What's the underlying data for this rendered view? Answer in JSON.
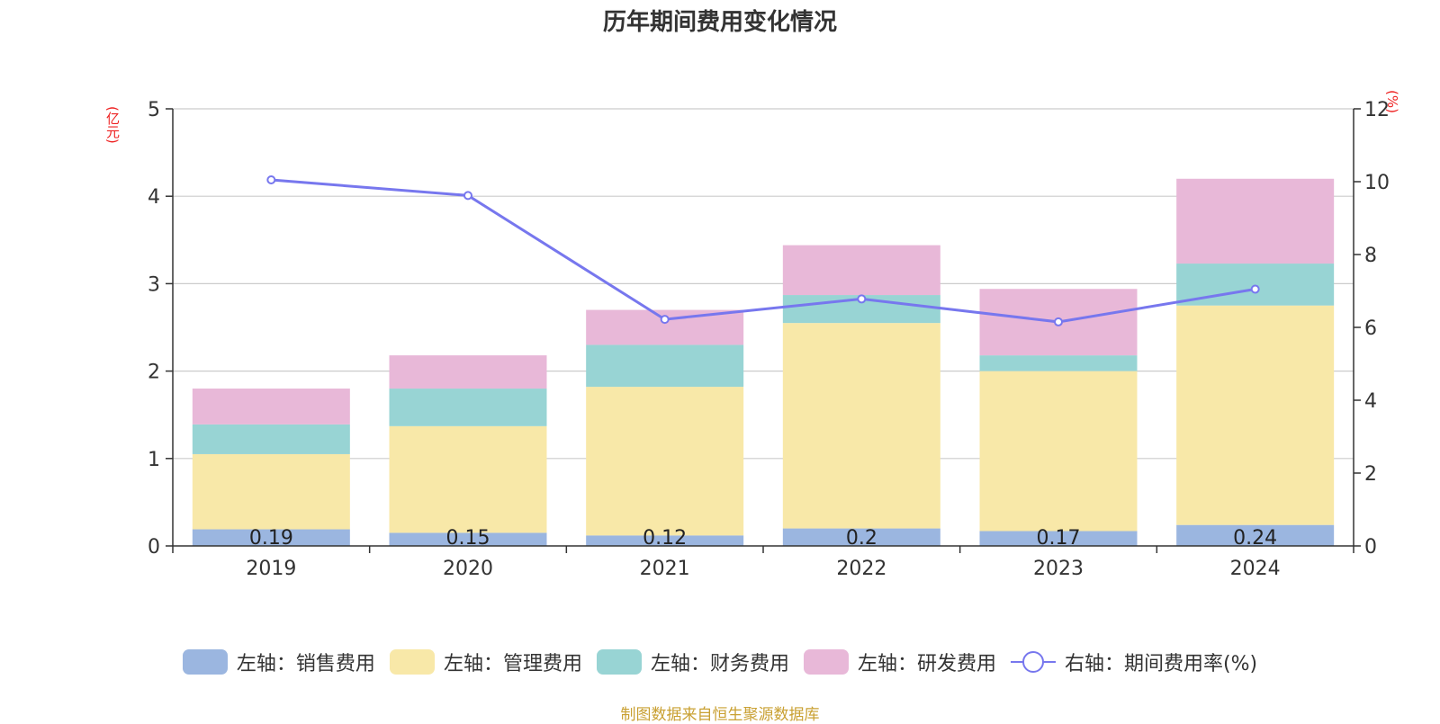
{
  "chart_data": {
    "type": "bar",
    "title": "历年期间费用变化情况",
    "categories": [
      "2019",
      "2020",
      "2021",
      "2022",
      "2023",
      "2024"
    ],
    "left_axis": {
      "unit": "(亿元)",
      "ylim": [
        0,
        5
      ],
      "ticks": [
        "0",
        "1",
        "2",
        "3",
        "4",
        "5"
      ]
    },
    "right_axis": {
      "unit": "(%)",
      "ylim": [
        0,
        12
      ],
      "ticks": [
        "0",
        "2",
        "4",
        "6",
        "8",
        "10",
        "12"
      ]
    },
    "stacked": true,
    "series": [
      {
        "name": "左轴：销售费用",
        "axis": "left",
        "type": "bar",
        "color": "#9bb6e0",
        "values": [
          0.19,
          0.15,
          0.12,
          0.2,
          0.17,
          0.24
        ],
        "labels": [
          "0.19",
          "0.15",
          "0.12",
          "0.2",
          "0.17",
          "0.24"
        ]
      },
      {
        "name": "左轴：管理费用",
        "axis": "left",
        "type": "bar",
        "color": "#f8e8a8",
        "values": [
          0.86,
          1.22,
          1.7,
          2.35,
          1.83,
          2.51
        ]
      },
      {
        "name": "左轴：财务费用",
        "axis": "left",
        "type": "bar",
        "color": "#98d4d4",
        "values": [
          0.34,
          0.43,
          0.48,
          0.32,
          0.18,
          0.48
        ]
      },
      {
        "name": "左轴：研发费用",
        "axis": "left",
        "type": "bar",
        "color": "#e8b8d8",
        "values": [
          0.41,
          0.38,
          0.4,
          0.57,
          0.76,
          0.97
        ]
      },
      {
        "name": "右轴：期间费用率(%)",
        "axis": "right",
        "type": "line",
        "color": "#7777ee",
        "values": [
          10.05,
          9.62,
          6.22,
          6.78,
          6.15,
          7.05
        ]
      }
    ],
    "legend_position": "bottom",
    "grid": true
  },
  "footer": {
    "source": "制图数据来自恒生聚源数据库"
  }
}
